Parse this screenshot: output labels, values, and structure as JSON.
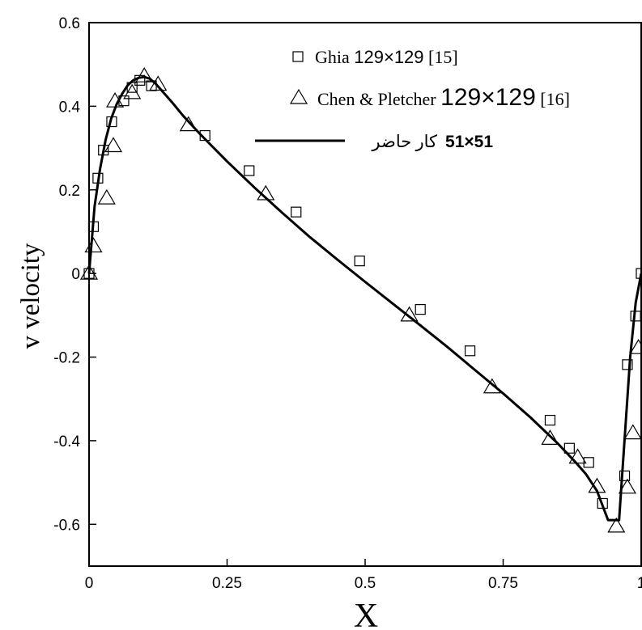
{
  "chart_data": {
    "type": "line",
    "title": "",
    "xlabel": "X",
    "ylabel": "v velocity",
    "xlim": [
      0,
      1
    ],
    "ylim": [
      -0.7,
      0.6
    ],
    "x_ticks": [
      {
        "value": 0,
        "label": "0"
      },
      {
        "value": 0.25,
        "label": "0.25"
      },
      {
        "value": 0.5,
        "label": "0.5"
      },
      {
        "value": 0.75,
        "label": "0.75"
      },
      {
        "value": 1,
        "label": "1"
      }
    ],
    "y_ticks": [
      {
        "value": 0.6,
        "label": "0.6"
      },
      {
        "value": 0.4,
        "label": "0.4"
      },
      {
        "value": 0.2,
        "label": "0.2"
      },
      {
        "value": 0,
        "label": "0"
      },
      {
        "value": -0.2,
        "label": "-0.2"
      },
      {
        "value": -0.4,
        "label": "-0.4"
      },
      {
        "value": -0.6,
        "label": "-0.6"
      }
    ],
    "grid": false,
    "legend_position": "top-right",
    "series": [
      {
        "name": "Ghia 129×129 [15]",
        "legend_parts": [
          "Ghia ",
          "129×129",
          " [15]"
        ],
        "marker": "square",
        "x": [
          0,
          0.008,
          0.016,
          0.026,
          0.041,
          0.063,
          0.078,
          0.092,
          0.113,
          0.21,
          0.29,
          0.375,
          0.49,
          0.6,
          0.69,
          0.835,
          0.87,
          0.905,
          0.93,
          0.97,
          0.975,
          0.99,
          1.0
        ],
        "y": [
          0,
          0.112,
          0.228,
          0.295,
          0.363,
          0.413,
          0.445,
          0.462,
          0.449,
          0.33,
          0.246,
          0.147,
          0.03,
          -0.086,
          -0.185,
          -0.351,
          -0.418,
          -0.452,
          -0.55,
          -0.484,
          -0.218,
          -0.102,
          0
        ]
      },
      {
        "name": "Chen & Pletcher 129×129 [16]",
        "legend_parts": [
          "Chen & Pletcher ",
          "129×129",
          " [16]"
        ],
        "marker": "triangle",
        "x": [
          0,
          0.008,
          0.032,
          0.044,
          0.047,
          0.078,
          0.1,
          0.125,
          0.18,
          0.32,
          0.58,
          0.73,
          0.835,
          0.885,
          0.92,
          0.955,
          0.975,
          0.985,
          0.995
        ],
        "y": [
          0,
          0.065,
          0.18,
          0.305,
          0.412,
          0.432,
          0.472,
          0.452,
          0.355,
          0.19,
          -0.1,
          -0.272,
          -0.395,
          -0.44,
          -0.51,
          -0.605,
          -0.512,
          -0.382,
          -0.178
        ]
      },
      {
        "name": "51×51 کار حاضر",
        "legend_parts": [
          "51×51",
          " کار حاضر"
        ],
        "marker": "line",
        "x": [
          0,
          0.01,
          0.02,
          0.03,
          0.04,
          0.05,
          0.06,
          0.07,
          0.08,
          0.09,
          0.1,
          0.11,
          0.12,
          0.13,
          0.15,
          0.17,
          0.2,
          0.25,
          0.3,
          0.35,
          0.4,
          0.45,
          0.5,
          0.55,
          0.6,
          0.65,
          0.7,
          0.75,
          0.8,
          0.85,
          0.88,
          0.9,
          0.92,
          0.94,
          0.96,
          0.98,
          0.99,
          1.0
        ],
        "y": [
          0,
          0.16,
          0.25,
          0.32,
          0.37,
          0.405,
          0.43,
          0.45,
          0.462,
          0.468,
          0.47,
          0.466,
          0.455,
          0.44,
          0.41,
          0.378,
          0.335,
          0.268,
          0.205,
          0.145,
          0.087,
          0.033,
          -0.02,
          -0.072,
          -0.124,
          -0.177,
          -0.232,
          -0.287,
          -0.345,
          -0.408,
          -0.45,
          -0.48,
          -0.52,
          -0.59,
          -0.59,
          -0.2,
          -0.07,
          0
        ]
      }
    ]
  }
}
